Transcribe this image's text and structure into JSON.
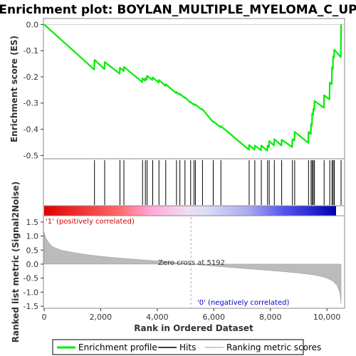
{
  "chart_data": {
    "type": "line",
    "title": "Enrichment plot: BOYLAN_MULTIPLE_MYELOMA_C_UP",
    "panels": {
      "es": {
        "ylabel": "Enrichment score (ES)",
        "ylim": [
          -0.51,
          0.02
        ],
        "yticks": [
          "0.0",
          "-0.1",
          "-0.2",
          "-0.3",
          "-0.4",
          "-0.5"
        ],
        "ytick_values": [
          0.0,
          -0.1,
          -0.2,
          -0.3,
          -0.4,
          -0.5
        ]
      },
      "metric": {
        "ylabel": "Ranked list metric (Signal2Noise)",
        "ylim": [
          -1.55,
          1.7
        ],
        "yticks": [
          "1.5",
          "1.0",
          "0.5",
          "0.0",
          "-0.5",
          "-1.0",
          "-1.5"
        ],
        "ytick_values": [
          1.5,
          1.0,
          0.5,
          0.0,
          -0.5,
          -1.0,
          -1.5
        ]
      }
    },
    "xlabel": "Rank in Ordered Dataset",
    "xlim": [
      0,
      10600
    ],
    "xticks": [
      "0",
      "2,000",
      "4,000",
      "6,000",
      "8,000",
      "10,000"
    ],
    "xtick_values": [
      0,
      2000,
      4000,
      6000,
      8000,
      10000
    ],
    "hits": [
      1780,
      2140,
      2680,
      2820,
      3480,
      3580,
      3640,
      3840,
      4060,
      4300,
      4680,
      4800,
      4980,
      5180,
      5300,
      5350,
      5600,
      5980,
      6250,
      7250,
      7450,
      7680,
      7900,
      7960,
      8140,
      8400,
      8780,
      8860,
      9350,
      9440,
      9480,
      9520,
      9560,
      9900,
      10100,
      10180,
      10220,
      10260,
      10500
    ],
    "series": [
      {
        "name": "Enrichment profile",
        "color": "#00ee00",
        "x": [
          0,
          1770,
          1780,
          2130,
          2140,
          2670,
          2680,
          2810,
          2820,
          3470,
          3480,
          3570,
          3580,
          3630,
          3640,
          3830,
          3840,
          4050,
          4060,
          4290,
          4300,
          4670,
          4680,
          4790,
          4800,
          4970,
          4980,
          5170,
          5180,
          5290,
          5300,
          5340,
          5350,
          5590,
          5600,
          5970,
          5980,
          6240,
          6250,
          7240,
          7250,
          7440,
          7450,
          7670,
          7680,
          7890,
          7900,
          7950,
          7960,
          8130,
          8140,
          8390,
          8400,
          8770,
          8780,
          8850,
          8860,
          9340,
          9350,
          9430,
          9440,
          9470,
          9480,
          9510,
          9520,
          9550,
          9560,
          9890,
          9900,
          10090,
          10100,
          10170,
          10180,
          10210,
          10220,
          10250,
          10260,
          10490,
          10500
        ],
        "y": [
          0.0,
          -0.172,
          -0.135,
          -0.17,
          -0.143,
          -0.188,
          -0.165,
          -0.178,
          -0.162,
          -0.22,
          -0.205,
          -0.215,
          -0.205,
          -0.21,
          -0.196,
          -0.212,
          -0.202,
          -0.222,
          -0.212,
          -0.235,
          -0.228,
          -0.262,
          -0.258,
          -0.268,
          -0.265,
          -0.28,
          -0.278,
          -0.298,
          -0.296,
          -0.306,
          -0.304,
          -0.308,
          -0.306,
          -0.326,
          -0.324,
          -0.372,
          -0.37,
          -0.392,
          -0.388,
          -0.478,
          -0.46,
          -0.478,
          -0.462,
          -0.48,
          -0.462,
          -0.482,
          -0.462,
          -0.468,
          -0.445,
          -0.462,
          -0.438,
          -0.462,
          -0.44,
          -0.468,
          -0.438,
          -0.442,
          -0.41,
          -0.452,
          -0.41,
          -0.418,
          -0.38,
          -0.385,
          -0.34,
          -0.345,
          -0.322,
          -0.326,
          -0.292,
          -0.318,
          -0.27,
          -0.286,
          -0.222,
          -0.228,
          -0.163,
          -0.168,
          -0.122,
          -0.126,
          -0.096,
          -0.125,
          0.0
        ]
      },
      {
        "name": "Hits",
        "color": "#000000"
      },
      {
        "name": "Ranking metric scores",
        "color": "#bbbbbb",
        "x": [
          0,
          50,
          150,
          300,
          600,
          1000,
          1500,
          2000,
          2500,
          3000,
          3500,
          4000,
          4500,
          5000,
          5192,
          5500,
          6000,
          6500,
          7000,
          7500,
          8000,
          8500,
          9000,
          9500,
          9800,
          10000,
          10200,
          10350,
          10450,
          10500
        ],
        "y": [
          1.15,
          0.95,
          0.78,
          0.62,
          0.5,
          0.42,
          0.34,
          0.28,
          0.23,
          0.19,
          0.15,
          0.11,
          0.07,
          0.03,
          0.0,
          -0.03,
          -0.07,
          -0.11,
          -0.15,
          -0.19,
          -0.23,
          -0.27,
          -0.32,
          -0.38,
          -0.44,
          -0.5,
          -0.6,
          -0.75,
          -1.0,
          -1.4
        ]
      }
    ],
    "annotations": {
      "zero_cross": "Zero cross at 5192",
      "zero_cross_x": 5192,
      "positive": "'1' (positively correlated)",
      "negative": "'0' (negatively correlated)"
    },
    "legend_position": "bottom"
  }
}
